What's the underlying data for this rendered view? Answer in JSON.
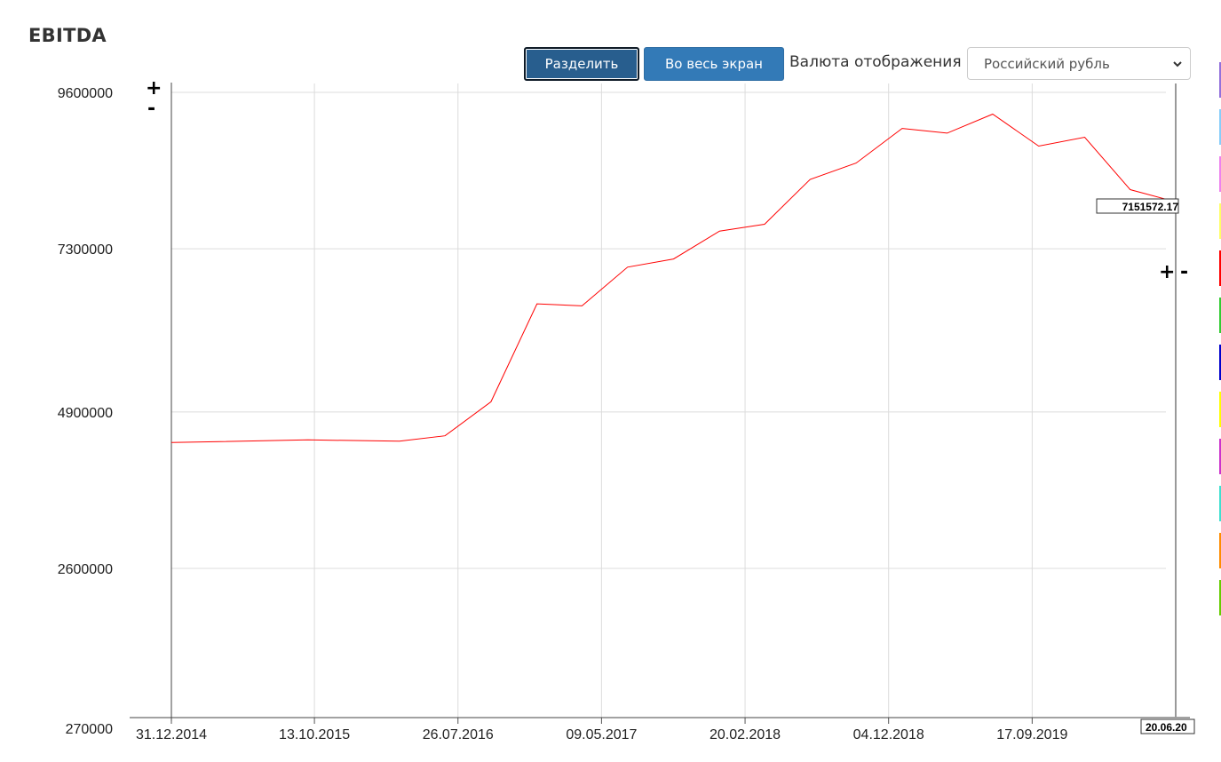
{
  "page": {
    "title": "EBITDA",
    "buttons": {
      "split": "Разделить",
      "fullscreen": "Во весь экран"
    },
    "currency": {
      "label": "Валюта отображения",
      "selected": "Российский рубль"
    },
    "zoom": {
      "plus": "+",
      "minus": "-"
    }
  },
  "chart_data": {
    "type": "line",
    "title": "EBITDA",
    "xlabel": "",
    "ylabel": "",
    "ylim": [
      270000,
      9600000
    ],
    "yticks": [
      270000,
      2600000,
      4900000,
      7300000,
      9600000
    ],
    "ytick_labels": [
      "270000",
      "2600000",
      "4900000",
      "7300000",
      "9600000"
    ],
    "xlim": [
      "2014-12-31",
      "2020-06-30"
    ],
    "xtick_labels": [
      "31.12.2014",
      "13.10.2015",
      "26.07.2016",
      "09.05.2017",
      "20.02.2018",
      "04.12.2018",
      "17.09.2019"
    ],
    "grid": true,
    "crosshair": {
      "x_label": "20.06.20",
      "y_value": "7151572.17"
    },
    "series": [
      {
        "color": "#ff0000",
        "points": [
          [
            "2014-12-31",
            4450000
          ],
          [
            "2015-09-30",
            4490000
          ],
          [
            "2016-03-31",
            4470000
          ],
          [
            "2016-06-30",
            4550000
          ],
          [
            "2016-09-30",
            5050000
          ],
          [
            "2016-12-31",
            6490000
          ],
          [
            "2017-03-31",
            6460000
          ],
          [
            "2017-06-30",
            7030000
          ],
          [
            "2017-09-30",
            7150000
          ],
          [
            "2017-12-31",
            7560000
          ],
          [
            "2018-03-31",
            7660000
          ],
          [
            "2018-06-30",
            8320000
          ],
          [
            "2018-09-30",
            8560000
          ],
          [
            "2018-12-31",
            9070000
          ],
          [
            "2019-03-31",
            9000000
          ],
          [
            "2019-06-30",
            9280000
          ],
          [
            "2019-09-30",
            8810000
          ],
          [
            "2019-12-31",
            8940000
          ],
          [
            "2020-03-31",
            8170000
          ],
          [
            "2020-06-30",
            7990000
          ]
        ]
      }
    ],
    "legend_colors": [
      "#9370db",
      "#87cefa",
      "#ee82ee",
      "#ffff66",
      "#ff0000",
      "#33cc33",
      "#0000cc",
      "#ffff00",
      "#cc33cc",
      "#40e0d0",
      "#ff8c00",
      "#66cc00"
    ]
  }
}
